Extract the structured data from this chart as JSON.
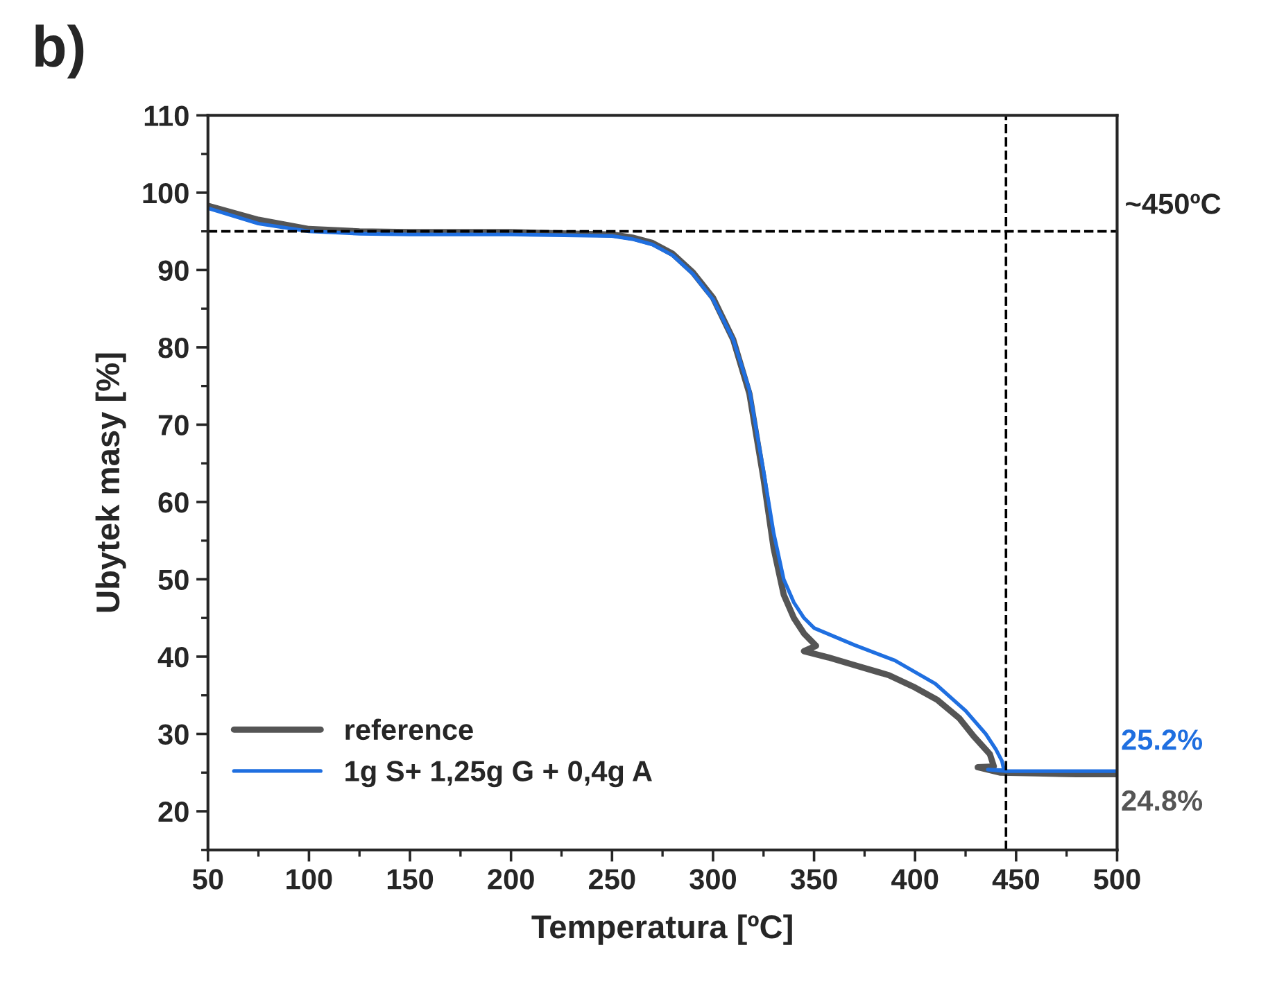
{
  "chart_data": {
    "type": "line",
    "title": "b)",
    "xlabel": "Temperatura [ºC]",
    "ylabel": "Ubytek masy [%]",
    "xlim": [
      50,
      500
    ],
    "xticks": [
      50,
      100,
      150,
      200,
      250,
      300,
      350,
      400,
      450,
      500
    ],
    "ylim": [
      15,
      110
    ],
    "yticks": [
      20,
      30,
      40,
      50,
      60,
      70,
      80,
      90,
      100,
      110
    ],
    "legend": "bottom left",
    "grid": false,
    "marker": "none",
    "line_style": "solid",
    "series": [
      {
        "name": "reference",
        "color": "#555555",
        "x": [
          50,
          75,
          100,
          125,
          150,
          200,
          250,
          260,
          270,
          280,
          290,
          300,
          310,
          318,
          325,
          330,
          335,
          340,
          345,
          351,
          345,
          357,
          370,
          387,
          400,
          411,
          422,
          429,
          437,
          439,
          431,
          442,
          460,
          480,
          500
        ],
        "values": [
          98.3,
          96.5,
          95.3,
          95.0,
          94.9,
          94.9,
          94.6,
          94.2,
          93.5,
          92.1,
          89.7,
          86.4,
          81,
          74,
          63,
          54,
          48,
          45,
          43,
          41.4,
          40.7,
          39.9,
          38.9,
          37.6,
          36,
          34.4,
          32,
          29.7,
          27.4,
          25.8,
          25.7,
          25.0,
          24.9,
          24.8,
          24.8
        ]
      },
      {
        "name": "1g S+ 1,25g G + 0,4g A",
        "color": "#1f6fe0",
        "x": [
          50,
          75,
          100,
          125,
          150,
          200,
          250,
          260,
          270,
          280,
          290,
          300,
          310,
          318,
          325,
          330,
          335,
          340,
          345,
          350,
          360,
          370,
          390,
          410,
          425,
          435,
          440,
          443,
          444,
          436,
          445,
          460,
          480,
          500
        ],
        "values": [
          98.0,
          96.0,
          95.0,
          94.7,
          94.6,
          94.6,
          94.4,
          94.0,
          93.3,
          91.9,
          89.5,
          86.2,
          81,
          74.5,
          64,
          56,
          50,
          47,
          45,
          43.7,
          42.6,
          41.5,
          39.5,
          36.5,
          33,
          30,
          28,
          26.5,
          25.3,
          25.4,
          25.2,
          25.2,
          25.2,
          25.2
        ]
      }
    ],
    "ref_lines": [
      {
        "axis": "y",
        "value": 95,
        "label": "~450ºC",
        "color": "#000000",
        "line_style": "dashed"
      },
      {
        "axis": "x",
        "value": 445,
        "label": null,
        "color": "#000000",
        "line_style": "dashed"
      }
    ],
    "annotations": [
      {
        "text": "25.2%",
        "x": 500,
        "y": 25.2
      },
      {
        "text": "24.8%",
        "x": 500,
        "y": 24.8
      }
    ]
  }
}
